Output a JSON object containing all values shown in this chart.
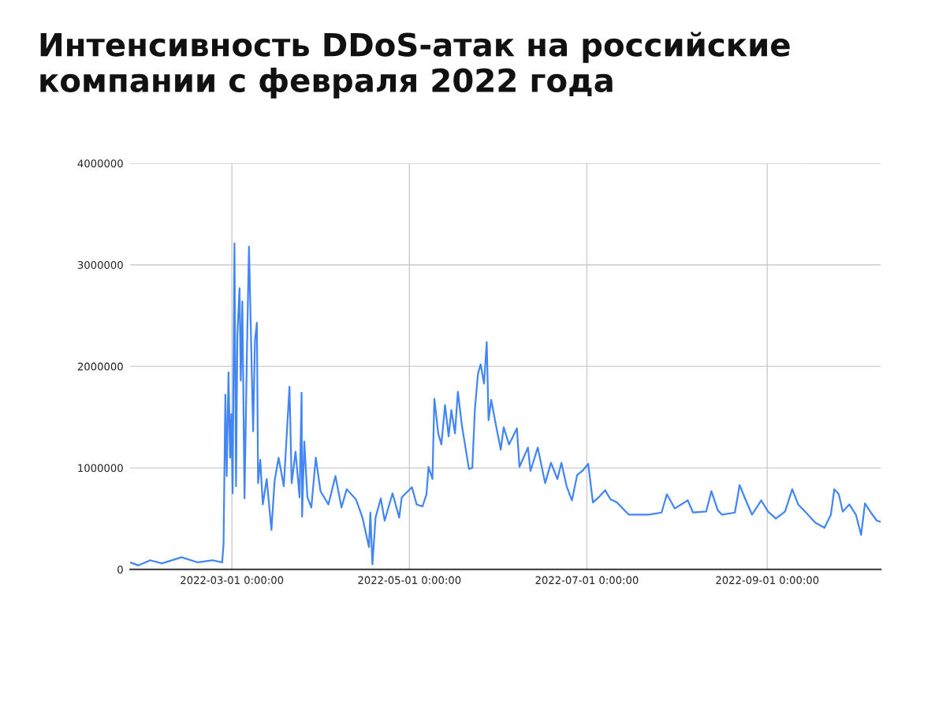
{
  "chart_data": {
    "type": "line",
    "title": "Интенсивность DDoS-атак на российские компании с февраля 2022 года",
    "xlim": [
      "2022-01-25",
      "2022-10-10"
    ],
    "xticks": [
      {
        "value": "2022-03-01",
        "label": "2022-03-01 0:00:00"
      },
      {
        "value": "2022-05-01",
        "label": "2022-05-01 0:00:00"
      },
      {
        "value": "2022-07-01",
        "label": "2022-07-01 0:00:00"
      },
      {
        "value": "2022-09-01",
        "label": "2022-09-01 0:00:00"
      }
    ],
    "ylim": [
      0,
      4000000
    ],
    "yticks": [
      0,
      1000000,
      2000000,
      3000000,
      4000000
    ],
    "grid": true,
    "legend": false,
    "marker": "none",
    "line_style": "solid",
    "x": [
      "2022-01-25T00:00",
      "2022-01-27T19:00",
      "2022-01-31T22:00",
      "2022-02-04T23:00",
      "2022-02-11T17:00",
      "2022-02-17T02:00",
      "2022-02-22T12:00",
      "2022-02-25T16:00",
      "2022-02-26T03:00",
      "2022-02-26T18:00",
      "2022-02-27T05:00",
      "2022-02-27T20:00",
      "2022-02-28T09:00",
      "2022-02-28T19:00",
      "2022-03-01T06:00",
      "2022-03-01T21:00",
      "2022-03-02T10:00",
      "2022-03-02T21:00",
      "2022-03-03T15:00",
      "2022-03-04T01:00",
      "2022-03-04T14:00",
      "2022-03-05T08:00",
      "2022-03-06T05:00",
      "2022-03-06T21:00",
      "2022-03-07T14:00",
      "2022-03-08T07:00",
      "2022-03-08T22:00",
      "2022-03-09T14:00",
      "2022-03-10T00:00",
      "2022-03-10T18:00",
      "2022-03-11T15:00",
      "2022-03-12T23:00",
      "2022-03-14T14:00",
      "2022-03-15T16:00",
      "2022-03-17T01:00",
      "2022-03-18T20:00",
      "2022-03-20T19:00",
      "2022-03-21T13:00",
      "2022-03-22T21:00",
      "2022-03-24T06:00",
      "2022-03-24T23:00",
      "2022-03-25T03:00",
      "2022-03-25T21:00",
      "2022-03-26T23:00",
      "2022-03-28T07:00",
      "2022-03-29T20:00",
      "2022-03-31T11:00",
      "2022-04-03T04:00",
      "2022-04-05T14:00",
      "2022-04-07T16:00",
      "2022-04-09T11:00",
      "2022-04-12T15:00",
      "2022-04-14T21:00",
      "2022-04-17T03:00",
      "2022-04-17T14:00",
      "2022-04-18T07:00",
      "2022-04-19T09:00",
      "2022-04-21T04:00",
      "2022-04-22T12:00",
      "2022-04-25T05:00",
      "2022-04-27T12:00",
      "2022-04-28T09:00",
      "2022-05-01T21:00",
      "2022-05-03T12:00",
      "2022-05-05T12:00",
      "2022-05-06T21:00",
      "2022-05-07T14:00",
      "2022-05-08T22:00",
      "2022-05-09T14:00",
      "2022-05-10T22:00",
      "2022-05-12T00:00",
      "2022-05-13T06:00",
      "2022-05-14T12:00",
      "2022-05-15T10:00",
      "2022-05-16T16:00",
      "2022-05-17T16:00",
      "2022-05-19T01:00",
      "2022-05-21T11:00",
      "2022-05-22T15:00",
      "2022-05-23T12:00",
      "2022-05-24T14:00",
      "2022-05-25T12:00",
      "2022-05-26T16:00",
      "2022-05-27T14:00",
      "2022-05-28T05:00",
      "2022-05-29T03:00",
      "2022-05-30T18:00",
      "2022-06-01T10:00",
      "2022-06-02T10:00",
      "2022-06-04T06:00",
      "2022-06-06T23:00",
      "2022-06-07T20:00",
      "2022-06-10T18:00",
      "2022-06-11T15:00",
      "2022-06-14T03:00",
      "2022-06-16T16:00",
      "2022-06-18T16:00",
      "2022-06-20T21:00",
      "2022-06-22T06:00",
      "2022-06-24T01:00",
      "2022-06-25T21:00",
      "2022-06-27T16:00",
      "2022-06-29T11:00",
      "2022-07-01T11:00",
      "2022-07-03T02:00",
      "2022-07-05T01:00",
      "2022-07-07T07:00",
      "2022-07-09T03:00",
      "2022-07-11T08:00",
      "2022-07-14T01:00",
      "2022-07-15T10:00",
      "2022-07-22T04:00",
      "2022-07-26T16:00",
      "2022-07-28T12:00",
      "2022-07-31T05:00",
      "2022-08-04T16:00",
      "2022-08-06T12:00",
      "2022-08-11T00:00",
      "2022-08-12T19:00",
      "2022-08-15T01:00",
      "2022-08-16T10:00",
      "2022-08-20T21:00",
      "2022-08-22T12:00",
      "2022-08-24T12:00",
      "2022-08-26T18:00",
      "2022-08-29T22:00",
      "2022-09-01T06:00",
      "2022-09-03T23:00",
      "2022-09-07T03:00",
      "2022-09-09T14:00",
      "2022-09-11T15:00",
      "2022-09-14T08:00",
      "2022-09-17T12:00",
      "2022-09-20T16:00",
      "2022-09-22T21:00",
      "2022-09-24T01:00",
      "2022-09-25T14:00",
      "2022-09-26T23:00",
      "2022-09-29T05:00",
      "2022-10-01T11:00",
      "2022-10-03T06:00",
      "2022-10-04T14:00",
      "2022-10-06T21:00",
      "2022-10-08T16:00",
      "2022-10-10T00:00"
    ],
    "series": [
      {
        "color": "#4285f4",
        "values": [
          70000,
          40000,
          90000,
          60000,
          120000,
          70000,
          90000,
          70000,
          250000,
          1720000,
          920000,
          1940000,
          1100000,
          1530000,
          750000,
          3210000,
          820000,
          2310000,
          2770000,
          1860000,
          2640000,
          700000,
          2210000,
          3180000,
          2270000,
          1360000,
          2250000,
          2430000,
          850000,
          1080000,
          640000,
          890000,
          390000,
          870000,
          1100000,
          820000,
          1800000,
          850000,
          1160000,
          710000,
          1740000,
          520000,
          1260000,
          710000,
          610000,
          1100000,
          770000,
          640000,
          920000,
          610000,
          790000,
          690000,
          510000,
          220000,
          560000,
          50000,
          510000,
          700000,
          480000,
          750000,
          510000,
          710000,
          810000,
          640000,
          620000,
          740000,
          1010000,
          890000,
          1680000,
          1340000,
          1230000,
          1620000,
          1310000,
          1570000,
          1340000,
          1750000,
          1420000,
          990000,
          1000000,
          1570000,
          1930000,
          2020000,
          1830000,
          2240000,
          1470000,
          1670000,
          1420000,
          1180000,
          1400000,
          1230000,
          1390000,
          1010000,
          1200000,
          970000,
          1200000,
          850000,
          1050000,
          890000,
          1050000,
          820000,
          680000,
          930000,
          970000,
          1040000,
          660000,
          710000,
          780000,
          690000,
          660000,
          580000,
          540000,
          540000,
          560000,
          740000,
          600000,
          680000,
          560000,
          570000,
          770000,
          580000,
          540000,
          560000,
          830000,
          690000,
          540000,
          680000,
          570000,
          500000,
          570000,
          790000,
          640000,
          560000,
          460000,
          410000,
          540000,
          790000,
          740000,
          570000,
          640000,
          540000,
          340000,
          650000,
          550000,
          480000,
          470000
        ]
      }
    ]
  }
}
